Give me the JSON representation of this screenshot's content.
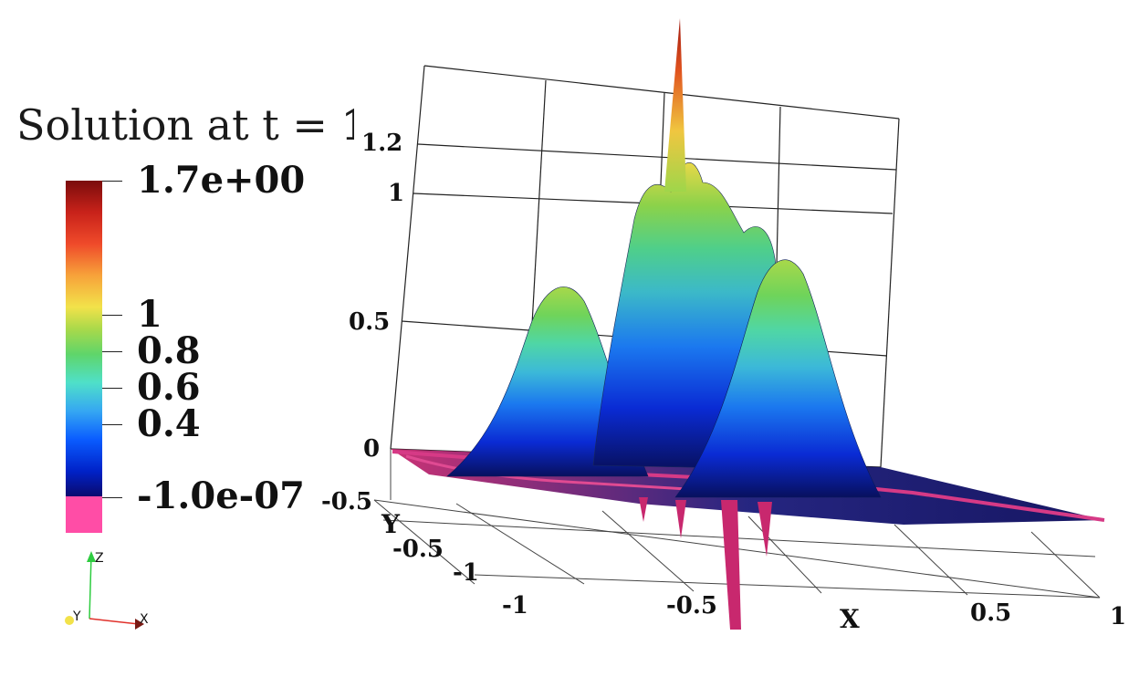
{
  "title": {
    "prefix": "Solution at t = ",
    "value": "1"
  },
  "colorbar": {
    "max_label": "1.7e+00",
    "min_label": "-1.0e-07",
    "ticks": [
      "1",
      "0.8",
      "0.6",
      "0.4"
    ],
    "nan_color": "#ff4da6",
    "colormap": [
      "#0a0a6e",
      "#0022c8",
      "#0a5cff",
      "#35a7f2",
      "#4fe0c9",
      "#5fd56a",
      "#a9d94a",
      "#f2e24a",
      "#f7a23a",
      "#ef4a2a",
      "#c8221a",
      "#7a0c0c"
    ]
  },
  "orientation_axes": {
    "z": "Z",
    "y": "Y",
    "x": "X"
  },
  "chart_data": {
    "type": "surface",
    "title": "Solution at t = 1",
    "x_axis": {
      "label": "X",
      "ticks": [
        "-1",
        "-0.5",
        "0.5",
        "1"
      ],
      "range": [
        -1,
        1
      ]
    },
    "y_axis": {
      "label": "Y",
      "ticks": [
        "-0.5",
        "-1",
        "-0.5"
      ],
      "range": [
        -1,
        1
      ]
    },
    "z_axis": {
      "label": "",
      "ticks": [
        "0",
        "0.5",
        "1",
        "1.2"
      ]
    },
    "color_range": [
      -1e-07,
      1.7
    ],
    "peaks": [
      {
        "name": "left",
        "height": 0.72
      },
      {
        "name": "center",
        "height": 1.05
      },
      {
        "name": "right",
        "height": 0.78
      },
      {
        "name": "spike",
        "height": 1.7
      }
    ],
    "grid": true
  }
}
